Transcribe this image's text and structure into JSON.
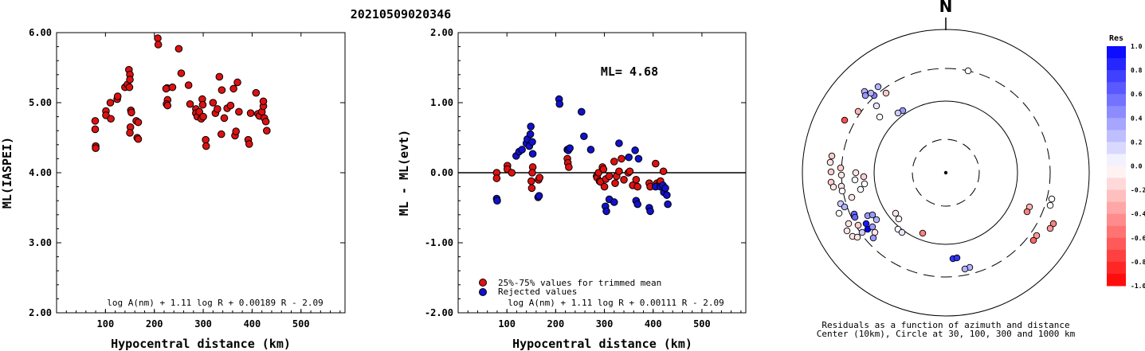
{
  "title": "20210509020346",
  "chart_data": [
    {
      "type": "scatter",
      "name": "left-panel",
      "xlabel": "Hypocentral distance (km)",
      "ylabel": "ML(IASPEI)",
      "xlim": [
        0,
        590
      ],
      "ylim": [
        2.0,
        6.0
      ],
      "xticks": [
        "100",
        "200",
        "300",
        "400",
        "500"
      ],
      "yticks": [
        "2.00",
        "3.00",
        "4.00",
        "5.00",
        "6.00"
      ],
      "formula": "log A(nm) + 1.11 log R + 0.00189 R - 2.09",
      "color": "#dd1111",
      "points": [
        [
          79,
          4.74
        ],
        [
          79,
          4.62
        ],
        [
          80,
          4.38
        ],
        [
          80,
          4.35
        ],
        [
          101,
          4.88
        ],
        [
          101,
          4.82
        ],
        [
          110,
          5.0
        ],
        [
          111,
          4.77
        ],
        [
          124,
          5.05
        ],
        [
          125,
          5.09
        ],
        [
          140,
          5.22
        ],
        [
          145,
          5.26
        ],
        [
          148,
          5.47
        ],
        [
          150,
          5.4
        ],
        [
          150,
          5.33
        ],
        [
          149,
          5.22
        ],
        [
          152,
          4.89
        ],
        [
          153,
          4.86
        ],
        [
          151,
          4.65
        ],
        [
          150,
          4.57
        ],
        [
          163,
          4.74
        ],
        [
          165,
          4.5
        ],
        [
          167,
          4.72
        ],
        [
          167,
          4.48
        ],
        [
          207,
          5.92
        ],
        [
          208,
          5.83
        ],
        [
          226,
          5.21
        ],
        [
          224,
          5.2
        ],
        [
          227,
          5.04
        ],
        [
          225,
          4.98
        ],
        [
          227,
          4.96
        ],
        [
          237,
          5.22
        ],
        [
          250,
          5.77
        ],
        [
          255,
          5.42
        ],
        [
          270,
          5.25
        ],
        [
          273,
          4.98
        ],
        [
          285,
          4.91
        ],
        [
          285,
          4.85
        ],
        [
          288,
          4.8
        ],
        [
          292,
          4.87
        ],
        [
          296,
          4.77
        ],
        [
          298,
          5.05
        ],
        [
          299,
          4.97
        ],
        [
          300,
          4.8
        ],
        [
          305,
          4.47
        ],
        [
          306,
          4.38
        ],
        [
          320,
          5.0
        ],
        [
          325,
          4.85
        ],
        [
          329,
          4.91
        ],
        [
          333,
          5.37
        ],
        [
          337,
          4.55
        ],
        [
          338,
          5.18
        ],
        [
          343,
          4.78
        ],
        [
          349,
          4.92
        ],
        [
          356,
          4.96
        ],
        [
          362,
          5.2
        ],
        [
          365,
          4.53
        ],
        [
          367,
          4.59
        ],
        [
          370,
          5.29
        ],
        [
          373,
          4.87
        ],
        [
          392,
          4.47
        ],
        [
          394,
          4.41
        ],
        [
          397,
          4.85
        ],
        [
          408,
          5.14
        ],
        [
          412,
          4.84
        ],
        [
          415,
          4.81
        ],
        [
          420,
          4.87
        ],
        [
          423,
          4.95
        ],
        [
          423,
          5.02
        ],
        [
          425,
          4.78
        ],
        [
          428,
          4.73
        ],
        [
          430,
          4.6
        ]
      ]
    },
    {
      "type": "scatter",
      "name": "middle-panel",
      "xlabel": "Hypocentral distance (km)",
      "ylabel": "ML - ML(evt)",
      "xlim": [
        0,
        590
      ],
      "ylim": [
        -2.0,
        2.0
      ],
      "xticks": [
        "100",
        "200",
        "300",
        "400",
        "500"
      ],
      "yticks": [
        "-2.00",
        "-1.00",
        "0.00",
        "1.00",
        "2.00"
      ],
      "ml_text": "ML= 4.68",
      "formula": "log A(nm) + 1.11 log R + 0.00111 R - 2.09",
      "legend": [
        {
          "label": "25%-75% values for trimmed mean",
          "color": "#dd1111"
        },
        {
          "label": "Rejected values",
          "color": "#1111cc"
        }
      ],
      "series": [
        {
          "color": "#dd1111",
          "points": [
            [
              79,
              0.0
            ],
            [
              79,
              -0.08
            ],
            [
              101,
              0.1
            ],
            [
              101,
              0.05
            ],
            [
              110,
              0.0
            ],
            [
              153,
              0.08
            ],
            [
              152,
              0.0
            ],
            [
              150,
              -0.12
            ],
            [
              151,
              -0.22
            ],
            [
              165,
              -0.1
            ],
            [
              167,
              -0.07
            ],
            [
              224,
              0.2
            ],
            [
              225,
              0.14
            ],
            [
              227,
              0.08
            ],
            [
              284,
              -0.05
            ],
            [
              285,
              -0.07
            ],
            [
              288,
              0.0
            ],
            [
              290,
              -0.12
            ],
            [
              292,
              -0.13
            ],
            [
              296,
              0.08
            ],
            [
              298,
              0.05
            ],
            [
              300,
              -0.2
            ],
            [
              303,
              -0.09
            ],
            [
              310,
              -0.05
            ],
            [
              320,
              0.16
            ],
            [
              322,
              -0.15
            ],
            [
              325,
              -0.05
            ],
            [
              330,
              0.02
            ],
            [
              335,
              0.2
            ],
            [
              340,
              -0.1
            ],
            [
              349,
              0.0
            ],
            [
              352,
              0.02
            ],
            [
              358,
              -0.18
            ],
            [
              365,
              -0.1
            ],
            [
              368,
              -0.2
            ],
            [
              392,
              -0.15
            ],
            [
              394,
              -0.2
            ],
            [
              405,
              0.13
            ],
            [
              408,
              -0.15
            ],
            [
              412,
              -0.17
            ],
            [
              415,
              -0.12
            ],
            [
              421,
              0.02
            ]
          ]
        },
        {
          "color": "#1111cc",
          "points": [
            [
              79,
              -0.37
            ],
            [
              80,
              -0.4
            ],
            [
              119,
              0.24
            ],
            [
              125,
              0.3
            ],
            [
              131,
              0.33
            ],
            [
              140,
              0.42
            ],
            [
              142,
              0.48
            ],
            [
              146,
              0.38
            ],
            [
              148,
              0.55
            ],
            [
              149,
              0.66
            ],
            [
              152,
              0.44
            ],
            [
              153,
              0.27
            ],
            [
              164,
              -0.35
            ],
            [
              166,
              -0.33
            ],
            [
              207,
              1.05
            ],
            [
              208,
              0.98
            ],
            [
              224,
              0.33
            ],
            [
              226,
              0.32
            ],
            [
              229,
              0.35
            ],
            [
              253,
              0.87
            ],
            [
              258,
              0.52
            ],
            [
              272,
              0.33
            ],
            [
              302,
              -0.48
            ],
            [
              304,
              -0.55
            ],
            [
              310,
              -0.38
            ],
            [
              320,
              -0.42
            ],
            [
              330,
              0.42
            ],
            [
              350,
              0.22
            ],
            [
              363,
              0.32
            ],
            [
              365,
              -0.4
            ],
            [
              368,
              -0.45
            ],
            [
              370,
              0.2
            ],
            [
              392,
              -0.5
            ],
            [
              394,
              -0.55
            ],
            [
              405,
              -0.2
            ],
            [
              415,
              -0.2
            ],
            [
              420,
              -0.18
            ],
            [
              422,
              -0.28
            ],
            [
              425,
              -0.22
            ],
            [
              428,
              -0.32
            ],
            [
              430,
              -0.45
            ]
          ]
        }
      ]
    }
  ],
  "polar": {
    "north_label": "N",
    "caption_line1": "Residuals as a function of azimuth and distance",
    "caption_line2": "Center (10km), Circle at 30, 100, 300 and 1000 km",
    "points": [
      {
        "x": 1215,
        "y": 89,
        "res": 0.0
      },
      {
        "x": 1112,
        "y": 117,
        "res": -0.2
      },
      {
        "x": 1102,
        "y": 109,
        "res": 0.3
      },
      {
        "x": 1097,
        "y": 120,
        "res": 0.5
      },
      {
        "x": 1093,
        "y": 117,
        "res": 0.3
      },
      {
        "x": 1085,
        "y": 115,
        "res": 0.3
      },
      {
        "x": 1086,
        "y": 120,
        "res": 0.4
      },
      {
        "x": 1100,
        "y": 133,
        "res": 0.1
      },
      {
        "x": 1133,
        "y": 139,
        "res": 0.4
      },
      {
        "x": 1127,
        "y": 142,
        "res": 0.2
      },
      {
        "x": 1104,
        "y": 147,
        "res": 0.0
      },
      {
        "x": 1077,
        "y": 140,
        "res": -0.3
      },
      {
        "x": 1060,
        "y": 151,
        "res": -0.7
      },
      {
        "x": 1044,
        "y": 196,
        "res": -0.2
      },
      {
        "x": 1042,
        "y": 204,
        "res": -0.1
      },
      {
        "x": 1055,
        "y": 211,
        "res": -0.2
      },
      {
        "x": 1056,
        "y": 220,
        "res": -0.1
      },
      {
        "x": 1043,
        "y": 216,
        "res": -0.2
      },
      {
        "x": 1074,
        "y": 217,
        "res": -0.1
      },
      {
        "x": 1073,
        "y": 226,
        "res": 0.0
      },
      {
        "x": 1084,
        "y": 222,
        "res": -0.2
      },
      {
        "x": 1043,
        "y": 229,
        "res": -0.2
      },
      {
        "x": 1046,
        "y": 235,
        "res": -0.1
      },
      {
        "x": 1056,
        "y": 234,
        "res": -0.1
      },
      {
        "x": 1057,
        "y": 240,
        "res": 0.0
      },
      {
        "x": 1085,
        "y": 231,
        "res": 0.0
      },
      {
        "x": 1080,
        "y": 238,
        "res": 0.0
      },
      {
        "x": 1069,
        "y": 248,
        "res": -0.1
      },
      {
        "x": 1055,
        "y": 256,
        "res": 0.2
      },
      {
        "x": 1060,
        "y": 260,
        "res": 0.3
      },
      {
        "x": 1053,
        "y": 268,
        "res": 0.0
      },
      {
        "x": 1072,
        "y": 269,
        "res": 0.6
      },
      {
        "x": 1073,
        "y": 273,
        "res": 0.6
      },
      {
        "x": 1065,
        "y": 281,
        "res": -0.1
      },
      {
        "x": 1077,
        "y": 283,
        "res": -0.2
      },
      {
        "x": 1063,
        "y": 290,
        "res": -0.1
      },
      {
        "x": 1089,
        "y": 271,
        "res": 0.4
      },
      {
        "x": 1095,
        "y": 270,
        "res": 0.4
      },
      {
        "x": 1100,
        "y": 276,
        "res": 0.3
      },
      {
        "x": 1087,
        "y": 281,
        "res": 0.9
      },
      {
        "x": 1089,
        "y": 288,
        "res": 1.0
      },
      {
        "x": 1082,
        "y": 292,
        "res": 0.2
      },
      {
        "x": 1095,
        "y": 285,
        "res": 0.4
      },
      {
        "x": 1098,
        "y": 292,
        "res": -0.1
      },
      {
        "x": 1096,
        "y": 299,
        "res": 0.4
      },
      {
        "x": 1070,
        "y": 297,
        "res": -0.1
      },
      {
        "x": 1076,
        "y": 298,
        "res": -0.1
      },
      {
        "x": 1124,
        "y": 268,
        "res": -0.1
      },
      {
        "x": 1128,
        "y": 275,
        "res": 0.0
      },
      {
        "x": 1127,
        "y": 288,
        "res": 0.0
      },
      {
        "x": 1132,
        "y": 292,
        "res": 0.1
      },
      {
        "x": 1158,
        "y": 293,
        "res": -0.5
      },
      {
        "x": 1196,
        "y": 325,
        "res": 0.8
      },
      {
        "x": 1201,
        "y": 324,
        "res": 0.8
      },
      {
        "x": 1217,
        "y": 336,
        "res": 0.3
      },
      {
        "x": 1211,
        "y": 338,
        "res": 0.3
      },
      {
        "x": 1292,
        "y": 260,
        "res": -0.3
      },
      {
        "x": 1289,
        "y": 266,
        "res": -0.5
      },
      {
        "x": 1320,
        "y": 250,
        "res": 0.0
      },
      {
        "x": 1318,
        "y": 258,
        "res": 0.0
      },
      {
        "x": 1322,
        "y": 281,
        "res": -0.5
      },
      {
        "x": 1318,
        "y": 287,
        "res": -0.4
      },
      {
        "x": 1301,
        "y": 296,
        "res": -0.4
      },
      {
        "x": 1297,
        "y": 302,
        "res": -0.6
      }
    ]
  },
  "colorbar": {
    "title": "Res",
    "labels": [
      "1.0",
      "0.8",
      "0.6",
      "0.4",
      "0.2",
      "0.0",
      "-0.2",
      "-0.4",
      "-0.6",
      "-0.8",
      "-1.0"
    ]
  }
}
